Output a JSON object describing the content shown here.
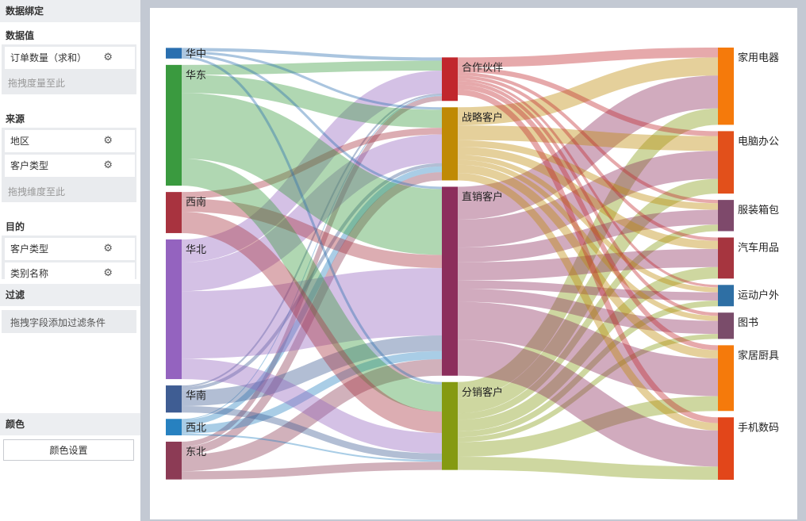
{
  "panel": {
    "title": "数据绑定",
    "values_title": "数据值",
    "value_field": "订单数量（求和）",
    "value_hint": "拖拽度量至此",
    "source_title": "来源",
    "source_fields": [
      "地区",
      "客户类型"
    ],
    "source_hint": "拖拽维度至此",
    "target_title": "目的",
    "target_fields": [
      "客户类型",
      "类别名称"
    ],
    "filter_title": "过滤",
    "filter_hint": "拖拽字段添加过滤条件",
    "color_title": "颜色",
    "color_button": "颜色设置"
  },
  "chart_data": {
    "type": "sankey",
    "columns": [
      [
        "华中",
        "华东",
        "西南",
        "华北",
        "华南",
        "西北",
        "东北"
      ],
      [
        "合作伙伴",
        "战略客户",
        "直销客户",
        "分销客户"
      ],
      [
        "家用电器",
        "电脑办公",
        "服装箱包",
        "汽车用品",
        "运动户外",
        "图书",
        "家居厨具",
        "手机数码"
      ]
    ],
    "node_colors": {
      "华中": "#2a6faf",
      "华东": "#3a9a3f",
      "西南": "#a8333f",
      "华北": "#9463bf",
      "华南": "#3f5d93",
      "西北": "#2781c0",
      "东北": "#8c3b55",
      "合作伙伴": "#c1272d",
      "战略客户": "#bf8a05",
      "直销客户": "#8c2e5c",
      "分销客户": "#859a12",
      "家用电器": "#f57a0b",
      "电脑办公": "#e2501b",
      "服装箱包": "#7e496b",
      "汽车用品": "#a6353f",
      "运动户外": "#2e6fa4",
      "图书": "#7a4c6a",
      "家居厨具": "#f57a0b",
      "手机数码": "#e2461a"
    },
    "links": [
      {
        "source": "华中",
        "target": "合作伙伴",
        "value": 4
      },
      {
        "source": "华中",
        "target": "战略客户",
        "value": 3
      },
      {
        "source": "华中",
        "target": "直销客户",
        "value": 3
      },
      {
        "source": "华中",
        "target": "分销客户",
        "value": 3
      },
      {
        "source": "华东",
        "target": "合作伙伴",
        "value": 12
      },
      {
        "source": "华东",
        "target": "战略客户",
        "value": 22
      },
      {
        "source": "华东",
        "target": "直销客户",
        "value": 80
      },
      {
        "source": "华东",
        "target": "分销客户",
        "value": 33
      },
      {
        "source": "西南",
        "target": "战略客户",
        "value": 8
      },
      {
        "source": "西南",
        "target": "直销客户",
        "value": 16
      },
      {
        "source": "西南",
        "target": "分销客户",
        "value": 26
      },
      {
        "source": "华北",
        "target": "合作伙伴",
        "value": 28
      },
      {
        "source": "华北",
        "target": "战略客户",
        "value": 35
      },
      {
        "source": "华北",
        "target": "直销客户",
        "value": 82
      },
      {
        "source": "华北",
        "target": "分销客户",
        "value": 25
      },
      {
        "source": "华南",
        "target": "合作伙伴",
        "value": 2
      },
      {
        "source": "华南",
        "target": "战略客户",
        "value": 4
      },
      {
        "source": "华南",
        "target": "直销客户",
        "value": 19
      },
      {
        "source": "华南",
        "target": "分销客户",
        "value": 8
      },
      {
        "source": "西北",
        "target": "合作伙伴",
        "value": 1
      },
      {
        "source": "西北",
        "target": "战略客户",
        "value": 7
      },
      {
        "source": "西北",
        "target": "直销客户",
        "value": 10
      },
      {
        "source": "西北",
        "target": "分销客户",
        "value": 2
      },
      {
        "source": "东北",
        "target": "合作伙伴",
        "value": 6
      },
      {
        "source": "东北",
        "target": "战略客户",
        "value": 10
      },
      {
        "source": "东北",
        "target": "直销客户",
        "value": 20
      },
      {
        "source": "东北",
        "target": "分销客户",
        "value": 10
      },
      {
        "source": "合作伙伴",
        "target": "家用电器",
        "value": 12
      },
      {
        "source": "合作伙伴",
        "target": "电脑办公",
        "value": 6
      },
      {
        "source": "合作伙伴",
        "target": "服装箱包",
        "value": 4
      },
      {
        "source": "合作伙伴",
        "target": "汽车用品",
        "value": 4
      },
      {
        "source": "合作伙伴",
        "target": "运动户外",
        "value": 3
      },
      {
        "source": "合作伙伴",
        "target": "图书",
        "value": 4
      },
      {
        "source": "合作伙伴",
        "target": "家居厨具",
        "value": 6
      },
      {
        "source": "合作伙伴",
        "target": "手机数码",
        "value": 7
      },
      {
        "source": "战略客户",
        "target": "家用电器",
        "value": 22
      },
      {
        "source": "战略客户",
        "target": "电脑办公",
        "value": 18
      },
      {
        "source": "战略客户",
        "target": "服装箱包",
        "value": 8
      },
      {
        "source": "战略客户",
        "target": "汽车用品",
        "value": 10
      },
      {
        "source": "战略客户",
        "target": "运动户外",
        "value": 6
      },
      {
        "source": "战略客户",
        "target": "图书",
        "value": 6
      },
      {
        "source": "战略客户",
        "target": "家居厨具",
        "value": 10
      },
      {
        "source": "战略客户",
        "target": "手机数码",
        "value": 9
      },
      {
        "source": "直销客户",
        "target": "家用电器",
        "value": 40
      },
      {
        "source": "直销客户",
        "target": "电脑办公",
        "value": 34
      },
      {
        "source": "直销客户",
        "target": "服装箱包",
        "value": 18
      },
      {
        "source": "直销客户",
        "target": "汽车用品",
        "value": 22
      },
      {
        "source": "直销客户",
        "target": "运动户外",
        "value": 10
      },
      {
        "source": "直销客户",
        "target": "图书",
        "value": 16
      },
      {
        "source": "直销客户",
        "target": "家居厨具",
        "value": 46
      },
      {
        "source": "直销客户",
        "target": "手机数码",
        "value": 44
      },
      {
        "source": "分销客户",
        "target": "家用电器",
        "value": 20
      },
      {
        "source": "分销客户",
        "target": "电脑办公",
        "value": 18
      },
      {
        "source": "分销客户",
        "target": "服装箱包",
        "value": 8
      },
      {
        "source": "分销客户",
        "target": "汽车用品",
        "value": 14
      },
      {
        "source": "分销客户",
        "target": "运动户外",
        "value": 7
      },
      {
        "source": "分销客户",
        "target": "图书",
        "value": 6
      },
      {
        "source": "分销客户",
        "target": "家居厨具",
        "value": 18
      },
      {
        "source": "分销客户",
        "target": "手机数码",
        "value": 16
      }
    ]
  }
}
